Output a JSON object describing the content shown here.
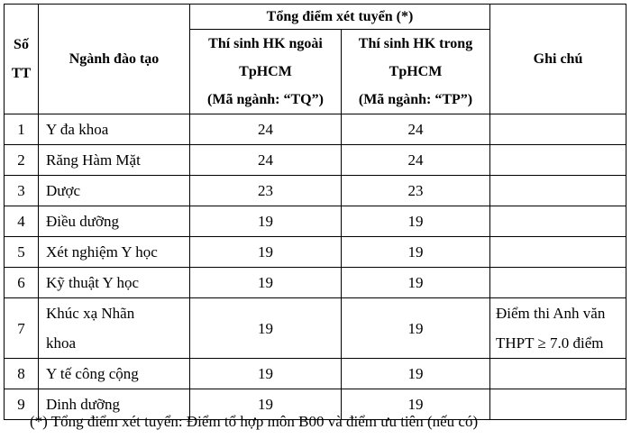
{
  "header": {
    "stt": "Số TT",
    "major": "Ngành đào tạo",
    "total": "Tổng điểm xét tuyển (*)",
    "outside": "Thí sinh HK ngoài TpHCM",
    "outside_code": "(Mã ngành: “TQ”)",
    "inside": "Thí sinh HK trong TpHCM",
    "inside_code": "(Mã ngành: “TP”)",
    "note": "Ghi chú"
  },
  "table": {
    "rows": [
      [
        1,
        "Y đa khoa",
        24,
        24,
        null
      ],
      [
        2,
        "Răng Hàm Mặt",
        24,
        24,
        null
      ],
      [
        3,
        "Dược",
        23,
        23,
        null
      ],
      [
        4,
        "Điều dưỡng",
        19,
        19,
        null
      ],
      [
        5,
        "Xét nghiệm Y học",
        19,
        19,
        null
      ],
      [
        6,
        "Kỹ thuật Y học",
        19,
        19,
        null
      ],
      [
        7,
        "Khúc xạ Nhãn khoa",
        19,
        19,
        "Điểm thi Anh văn THPT ≥ 7.0 điểm"
      ],
      [
        8,
        "Y tế công cộng",
        19,
        19,
        null
      ],
      [
        9,
        "Dinh dưỡng",
        19,
        19,
        null
      ]
    ]
  },
  "footnote": "(*) Tổng điểm xét tuyển: Điểm tổ hợp môn B00 và điểm ưu tiên (nếu có)"
}
